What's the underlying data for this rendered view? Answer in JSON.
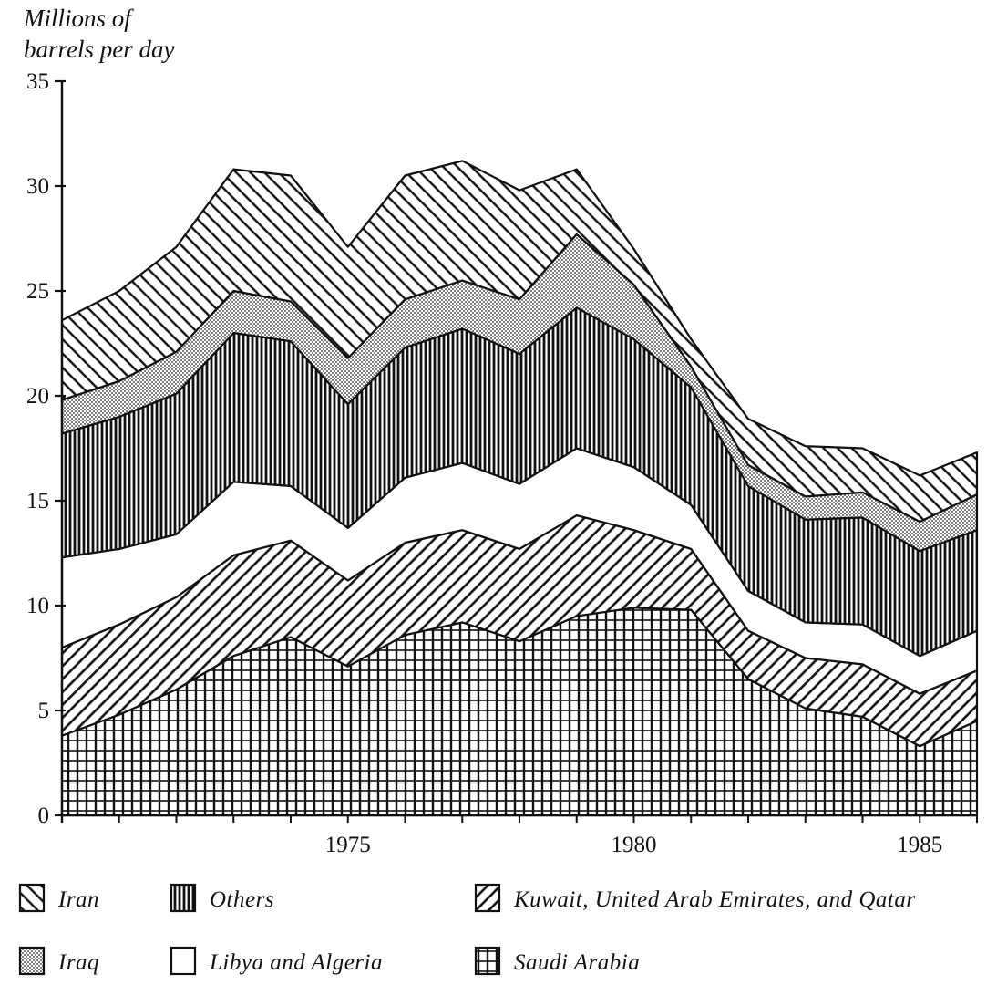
{
  "chart_data": {
    "type": "area",
    "stacked": true,
    "title": "",
    "ylabel_lines": [
      "Millions of",
      "barrels per day"
    ],
    "xlabel": "",
    "xlim": [
      1970,
      1986
    ],
    "ylim": [
      0,
      35
    ],
    "yticks": [
      "0",
      "5",
      "10",
      "15",
      "20",
      "25",
      "30",
      "35"
    ],
    "xticks": [
      "1975",
      "1980",
      "1985"
    ],
    "grid": false,
    "legend_position": "bottom",
    "x": [
      1970,
      1971,
      1972,
      1973,
      1974,
      1975,
      1976,
      1977,
      1978,
      1979,
      1980,
      1981,
      1982,
      1983,
      1984,
      1985,
      1986
    ],
    "series": [
      {
        "name": "Saudi Arabia",
        "pattern": "grid",
        "values": [
          3.8,
          4.8,
          6.0,
          7.6,
          8.5,
          7.1,
          8.6,
          9.2,
          8.3,
          9.5,
          9.9,
          9.8,
          6.5,
          5.1,
          4.7,
          3.3,
          4.5
        ]
      },
      {
        "name": "Kuwait, United Arab Emirates, and Qatar",
        "pattern": "diag-up",
        "values": [
          4.2,
          4.3,
          4.4,
          4.8,
          4.6,
          4.1,
          4.4,
          4.4,
          4.4,
          4.8,
          3.7,
          2.9,
          2.3,
          2.4,
          2.5,
          2.5,
          2.4
        ]
      },
      {
        "name": "Libya and Algeria",
        "pattern": "blank",
        "values": [
          4.3,
          3.6,
          3.0,
          3.5,
          2.6,
          2.5,
          3.1,
          3.2,
          3.1,
          3.2,
          3.0,
          2.1,
          1.9,
          1.7,
          1.9,
          1.8,
          1.9
        ]
      },
      {
        "name": "Others",
        "pattern": "vertical",
        "values": [
          5.9,
          6.3,
          6.7,
          7.1,
          6.9,
          5.9,
          6.2,
          6.4,
          6.2,
          6.7,
          6.1,
          5.6,
          5.0,
          4.9,
          5.1,
          5.0,
          4.8
        ]
      },
      {
        "name": "Iraq",
        "pattern": "dots",
        "values": [
          1.6,
          1.7,
          2.0,
          2.0,
          1.9,
          2.2,
          2.3,
          2.3,
          2.6,
          3.5,
          2.6,
          1.0,
          1.0,
          1.1,
          1.2,
          1.4,
          1.7
        ]
      },
      {
        "name": "Iran",
        "pattern": "diag-down",
        "values": [
          3.8,
          4.3,
          5.0,
          5.8,
          6.0,
          5.3,
          5.9,
          5.7,
          5.2,
          3.1,
          1.7,
          1.3,
          2.2,
          2.4,
          2.1,
          2.2,
          2.0
        ]
      }
    ]
  }
}
